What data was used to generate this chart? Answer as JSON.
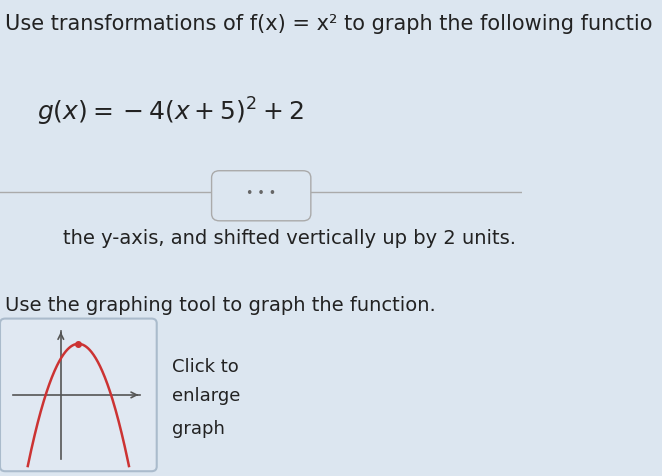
{
  "background_color": "#dce6f0",
  "title_line": "Use transformations of f(x) = x² to graph the following functio",
  "equation": "g(x) = – 4(x + 5)² + 2",
  "divider_text": "• • •",
  "body_text": "the y-axis, and shifted vertically up by 2 units.",
  "instruction_text": "Use the graphing tool to graph the function.",
  "click_text_line1": "Click to",
  "click_text_line2": "enlarge",
  "click_text_line3": "graph",
  "thumbnail_bg": "#e0e8f2",
  "thumbnail_border": "#aabbcc",
  "axes_color": "#555555",
  "parabola_color": "#cc3333",
  "text_color": "#222222",
  "title_fontsize": 15,
  "eq_fontsize": 18,
  "body_fontsize": 14,
  "instr_fontsize": 14
}
